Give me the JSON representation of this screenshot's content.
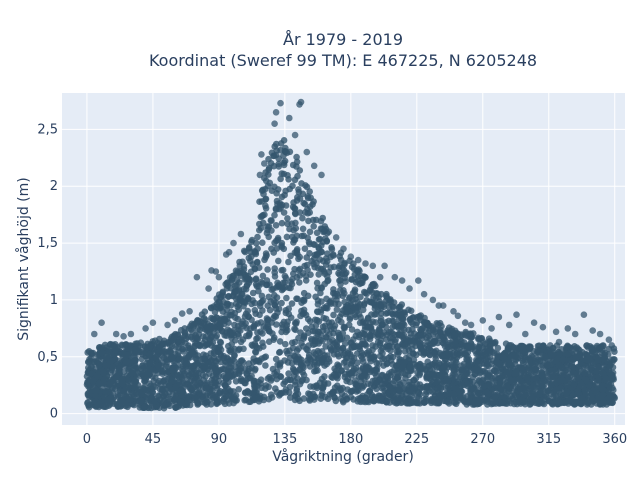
{
  "chart_data": {
    "type": "scatter",
    "title_line1": "År 1979 - 2019",
    "title_line2": "Koordinat (Sweref 99 TM): E 467225, N 6205248",
    "xlabel": "Vågriktning (grader)",
    "ylabel": "Signifikant våghöjd (m)",
    "xlim": [
      -17,
      367
    ],
    "ylim": [
      -0.1,
      2.82
    ],
    "x_ticks": [
      0,
      45,
      90,
      135,
      180,
      225,
      270,
      315,
      360
    ],
    "x_tick_labels": [
      "0",
      "45",
      "90",
      "135",
      "180",
      "225",
      "270",
      "315",
      "360"
    ],
    "y_ticks": [
      0,
      0.5,
      1,
      1.5,
      2,
      2.5
    ],
    "y_tick_labels": [
      "0",
      "0,5",
      "1",
      "1,5",
      "2",
      "2,5"
    ],
    "grid": true,
    "colors": {
      "marker": "#34566e",
      "plot_bg": "#e5ecf6",
      "grid": "#ffffff",
      "text": "#2a3f5f"
    },
    "envelope": {
      "direction": [
        0,
        10,
        20,
        30,
        40,
        50,
        60,
        70,
        80,
        90,
        100,
        110,
        115,
        120,
        125,
        130,
        135,
        140,
        145,
        150,
        155,
        160,
        165,
        170,
        180,
        190,
        200,
        210,
        220,
        230,
        240,
        250,
        260,
        270,
        280,
        290,
        300,
        310,
        320,
        330,
        340,
        350,
        360
      ],
      "upper": [
        0.55,
        0.6,
        0.62,
        0.63,
        0.64,
        0.66,
        0.7,
        0.78,
        0.9,
        1.05,
        1.25,
        1.5,
        1.75,
        2.05,
        2.3,
        2.45,
        2.5,
        2.35,
        2.2,
        2.05,
        1.9,
        1.75,
        1.6,
        1.45,
        1.35,
        1.2,
        1.1,
        1.0,
        0.92,
        0.85,
        0.8,
        0.75,
        0.72,
        0.68,
        0.64,
        0.6,
        0.6,
        0.6,
        0.6,
        0.6,
        0.6,
        0.6,
        0.58
      ],
      "lower": [
        0.05,
        0.06,
        0.06,
        0.06,
        0.05,
        0.04,
        0.05,
        0.07,
        0.08,
        0.08,
        0.09,
        0.1,
        0.1,
        0.11,
        0.12,
        0.12,
        0.12,
        0.12,
        0.11,
        0.11,
        0.1,
        0.1,
        0.1,
        0.1,
        0.1,
        0.1,
        0.1,
        0.09,
        0.09,
        0.09,
        0.09,
        0.08,
        0.08,
        0.08,
        0.08,
        0.08,
        0.08,
        0.08,
        0.08,
        0.08,
        0.08,
        0.08,
        0.08
      ]
    },
    "outliers": [
      [
        132,
        2.73
      ],
      [
        146,
        2.74
      ],
      [
        145,
        2.72
      ],
      [
        138,
        2.6
      ],
      [
        129,
        2.65
      ],
      [
        128,
        2.55
      ],
      [
        142,
        2.45
      ],
      [
        150,
        2.3
      ],
      [
        155,
        2.18
      ],
      [
        160,
        2.1
      ],
      [
        119,
        2.28
      ],
      [
        121,
        2.2
      ],
      [
        118,
        2.1
      ],
      [
        105,
        1.58
      ],
      [
        100,
        1.5
      ],
      [
        95,
        1.4
      ],
      [
        97,
        1.42
      ],
      [
        88,
        1.25
      ],
      [
        85,
        1.26
      ],
      [
        75,
        1.2
      ],
      [
        83,
        1.1
      ],
      [
        90,
        1.2
      ],
      [
        65,
        0.88
      ],
      [
        70,
        0.9
      ],
      [
        60,
        0.82
      ],
      [
        55,
        0.78
      ],
      [
        45,
        0.8
      ],
      [
        40,
        0.75
      ],
      [
        10,
        0.8
      ],
      [
        5,
        0.7
      ],
      [
        20,
        0.7
      ],
      [
        30,
        0.7
      ],
      [
        25,
        0.68
      ],
      [
        170,
        1.55
      ],
      [
        175,
        1.45
      ],
      [
        180,
        1.38
      ],
      [
        190,
        1.32
      ],
      [
        195,
        1.3
      ],
      [
        203,
        1.3
      ],
      [
        210,
        1.2
      ],
      [
        215,
        1.17
      ],
      [
        226,
        1.17
      ],
      [
        220,
        1.1
      ],
      [
        230,
        1.05
      ],
      [
        236,
        1.0
      ],
      [
        240,
        0.95
      ],
      [
        250,
        0.9
      ],
      [
        258,
        0.8
      ],
      [
        262,
        0.78
      ],
      [
        270,
        0.82
      ],
      [
        276,
        0.75
      ],
      [
        281,
        0.85
      ],
      [
        288,
        0.78
      ],
      [
        293,
        0.87
      ],
      [
        305,
        0.8
      ],
      [
        311,
        0.76
      ],
      [
        320,
        0.72
      ],
      [
        322,
        0.63
      ],
      [
        328,
        0.75
      ],
      [
        333,
        0.7
      ],
      [
        339,
        0.87
      ],
      [
        345,
        0.73
      ],
      [
        350,
        0.7
      ],
      [
        352,
        0.6
      ],
      [
        356,
        0.65
      ],
      [
        358,
        0.6
      ],
      [
        165,
        1.6
      ],
      [
        168,
        1.4
      ],
      [
        185,
        1.35
      ],
      [
        200,
        1.2
      ],
      [
        243,
        0.95
      ],
      [
        253,
        0.86
      ],
      [
        299,
        0.7
      ],
      [
        316,
        0.6
      ],
      [
        341,
        0.6
      ],
      [
        348,
        0.58
      ]
    ],
    "point_count": 4500
  }
}
